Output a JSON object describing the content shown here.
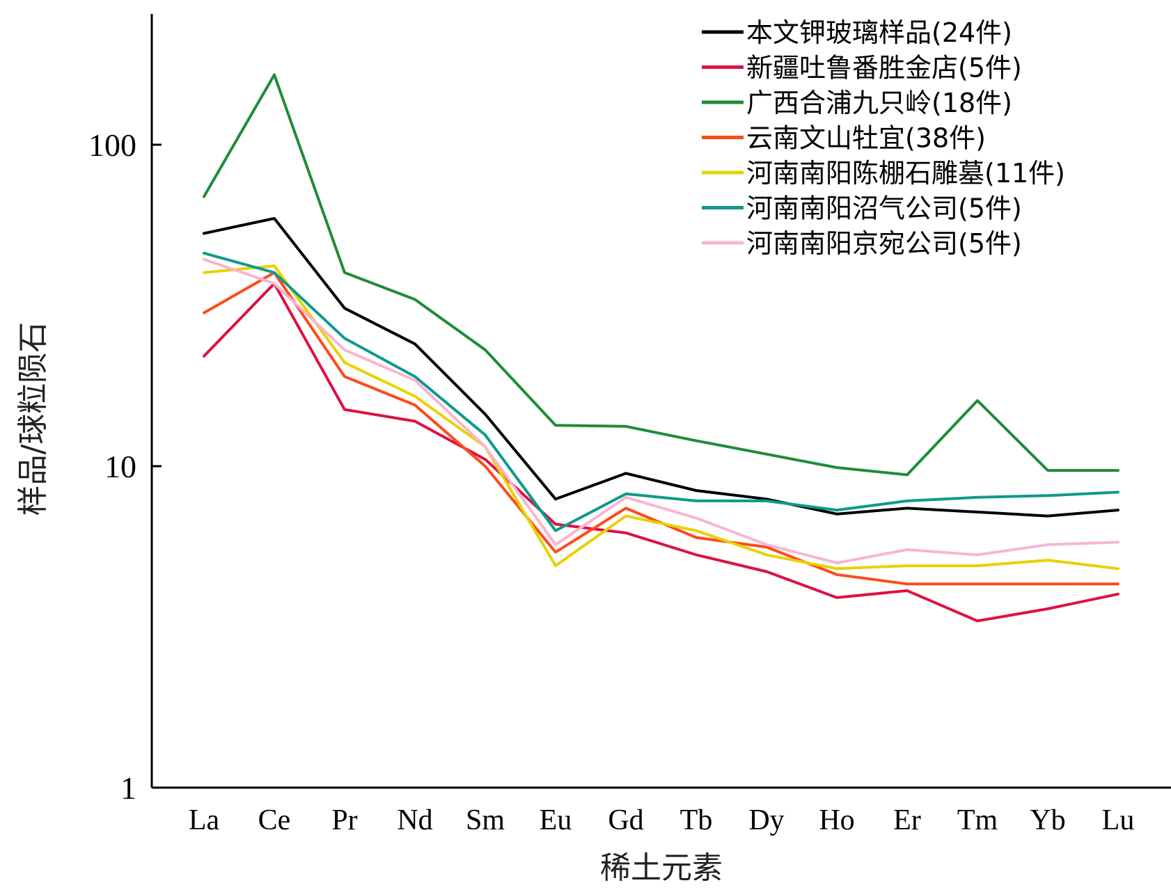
{
  "chart_data": {
    "type": "line",
    "title": "",
    "xlabel": "稀土元素",
    "ylabel": "样品/球粒陨石",
    "y_scale": "log",
    "ylim": [
      1,
      250
    ],
    "yticks": [
      {
        "value": 1,
        "label": "1"
      },
      {
        "value": 10,
        "label": "10"
      },
      {
        "value": 100,
        "label": "100"
      }
    ],
    "categories": [
      "La",
      "Ce",
      "Pr",
      "Nd",
      "Sm",
      "Eu",
      "Gd",
      "Tb",
      "Dy",
      "Ho",
      "Er",
      "Tm",
      "Yb",
      "Lu"
    ],
    "legend_position": "top-right",
    "series": [
      {
        "name": "本文钾玻璃样品(24件)",
        "color": "#000000",
        "values": [
          53,
          59,
          31,
          24,
          14.5,
          7.9,
          9.5,
          8.4,
          7.9,
          7.1,
          7.4,
          7.2,
          7.0,
          7.3
        ]
      },
      {
        "name": "新疆吐鲁番胜金店(5件)",
        "color": "#dd1144",
        "values": [
          22,
          37,
          15,
          13.8,
          10.5,
          6.6,
          6.2,
          5.3,
          4.7,
          3.9,
          4.1,
          3.3,
          3.6,
          4.0
        ]
      },
      {
        "name": "广西合浦九只岭(18件)",
        "color": "#1e8c3a",
        "values": [
          69,
          165,
          40,
          33,
          23,
          13.4,
          13.3,
          12.0,
          10.9,
          9.9,
          9.4,
          16.0,
          9.7,
          9.7
        ]
      },
      {
        "name": "云南文山牡宜(38件)",
        "color": "#ff4a1a",
        "values": [
          30,
          40,
          19,
          15.5,
          10,
          5.4,
          7.4,
          6.0,
          5.6,
          4.6,
          4.3,
          4.3,
          4.3,
          4.3
        ]
      },
      {
        "name": "河南南阳陈棚石雕墓(11件)",
        "color": "#e6d200",
        "values": [
          40,
          42,
          21,
          16.5,
          11.5,
          4.9,
          7.0,
          6.3,
          5.3,
          4.8,
          4.9,
          4.9,
          5.1,
          4.8
        ]
      },
      {
        "name": "河南南阳沼气公司(5件)",
        "color": "#0e9a8a",
        "values": [
          46,
          40,
          25,
          19,
          12.5,
          6.3,
          8.2,
          7.8,
          7.8,
          7.3,
          7.8,
          8.0,
          8.1,
          8.3
        ]
      },
      {
        "name": "河南南阳京宛公司(5件)",
        "color": "#f7b6cf",
        "values": [
          44,
          37,
          23,
          18.5,
          11.5,
          5.7,
          8.0,
          6.9,
          5.7,
          5.0,
          5.5,
          5.3,
          5.7,
          5.8
        ]
      }
    ]
  }
}
